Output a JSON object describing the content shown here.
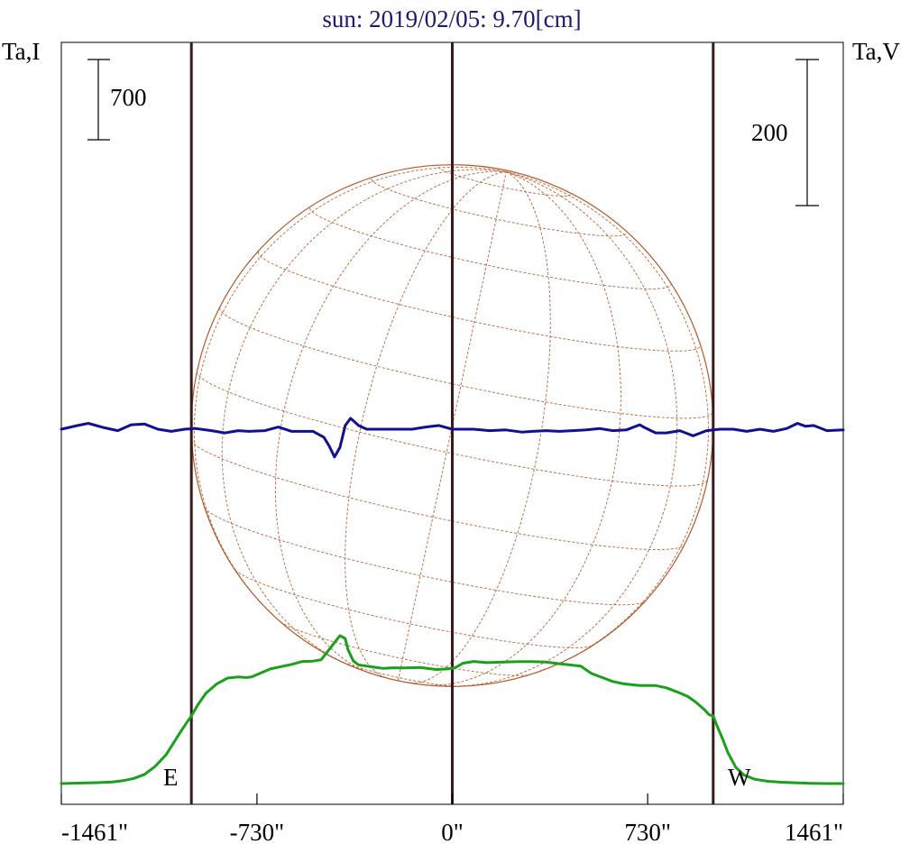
{
  "chart_data": {
    "type": "line",
    "title": "sun: 2019/02/05: 9.70[cm]",
    "left_axis_label": "Ta,I",
    "right_axis_label": "Ta,V",
    "scale_bar_left": "700",
    "scale_bar_right": "200",
    "limb_labels": {
      "east": "E",
      "west": "W"
    },
    "x_ticks": [
      {
        "value": -1461,
        "label": "-1461\""
      },
      {
        "value": -730,
        "label": "-730\""
      },
      {
        "value": 0,
        "label": "0\""
      },
      {
        "value": 730,
        "label": "730\""
      },
      {
        "value": 1461,
        "label": "1461\""
      }
    ],
    "xlim": [
      -1461,
      1461
    ],
    "limb_positions": [
      -975,
      975
    ],
    "solar_disc": {
      "center_x": 0,
      "radius": 975
    },
    "colors": {
      "title": "#1a1a6e",
      "stokes_i": "#1aa01a",
      "stokes_v": "#101090",
      "disc": "#b25a2a",
      "grid": "#b25a2a",
      "vertical_lines": "#3a1a1a",
      "text": "#000000"
    },
    "series": [
      {
        "name": "Ta,I",
        "x": [
          -1461,
          -1400,
          -1330,
          -1270,
          -1230,
          -1190,
          -1150,
          -1110,
          -1070,
          -1040,
          -1010,
          -990,
          -975,
          -950,
          -920,
          -880,
          -840,
          -800,
          -770,
          -750,
          -720,
          -680,
          -640,
          -600,
          -560,
          -520,
          -490,
          -450,
          -420,
          -400,
          -390,
          -370,
          -350,
          -320,
          -290,
          -260,
          -220,
          -180,
          -120,
          -60,
          -20,
          10,
          40,
          80,
          130,
          190,
          250,
          300,
          350,
          400,
          440,
          480,
          520,
          560,
          600,
          640,
          700,
          760,
          800,
          840,
          880,
          910,
          940,
          960,
          975,
          990,
          1010,
          1030,
          1060,
          1090,
          1130,
          1180,
          1230,
          1290,
          1340,
          1400,
          1461
        ],
        "y": [
          0,
          4,
          8,
          14,
          25,
          45,
          80,
          150,
          250,
          360,
          470,
          540,
          590,
          690,
          790,
          870,
          920,
          930,
          925,
          930,
          960,
          1000,
          1020,
          1040,
          1065,
          1068,
          1080,
          1200,
          1290,
          1265,
          1170,
          1070,
          1035,
          1025,
          1015,
          1005,
          1010,
          1008,
          1012,
          995,
          1000,
          1010,
          1050,
          1065,
          1055,
          1060,
          1063,
          1063,
          1060,
          1045,
          1035,
          1025,
          960,
          925,
          890,
          870,
          855,
          855,
          835,
          800,
          760,
          710,
          650,
          600,
          590,
          500,
          390,
          270,
          140,
          75,
          38,
          20,
          12,
          6,
          2,
          0,
          0
        ]
      },
      {
        "name": "Ta,V",
        "x": [
          -1461,
          -1400,
          -1360,
          -1300,
          -1250,
          -1200,
          -1150,
          -1100,
          -1050,
          -1000,
          -960,
          -900,
          -850,
          -800,
          -760,
          -700,
          -650,
          -600,
          -560,
          -520,
          -480,
          -460,
          -440,
          -420,
          -400,
          -380,
          -350,
          -320,
          -280,
          -240,
          -200,
          -150,
          -100,
          -50,
          0,
          40,
          80,
          140,
          200,
          260,
          300,
          350,
          400,
          450,
          500,
          550,
          600,
          650,
          700,
          720,
          760,
          800,
          850,
          900,
          950,
          1000,
          1050,
          1100,
          1150,
          1200,
          1250,
          1290,
          1320,
          1350,
          1400,
          1461
        ],
        "y": [
          0,
          5,
          8,
          2,
          -2,
          6,
          7,
          0,
          -3,
          0,
          1,
          -2,
          -5,
          -2,
          -3,
          -2,
          3,
          -3,
          -3,
          -3,
          -11,
          -23,
          -38,
          -25,
          5,
          15,
          5,
          0,
          0,
          0,
          0,
          0,
          3,
          5,
          0,
          0,
          0,
          -2,
          -1,
          -4,
          -3,
          -2,
          -3,
          -2,
          -1,
          1,
          -2,
          -1,
          6,
          2,
          -5,
          -5,
          -2,
          -9,
          -2,
          0,
          0,
          -3,
          0,
          -3,
          1,
          8,
          4,
          5,
          -2,
          -1
        ]
      }
    ]
  }
}
